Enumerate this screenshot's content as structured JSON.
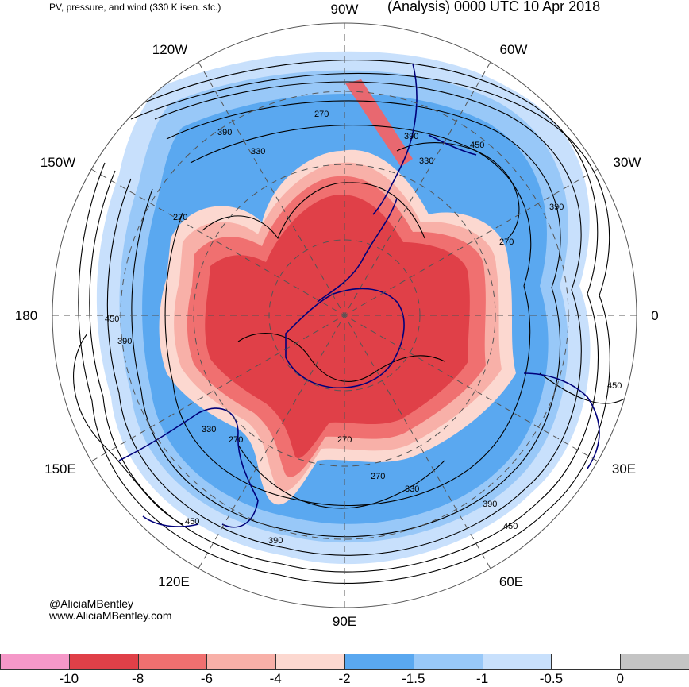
{
  "header": {
    "title_left": "PV, pressure, and wind (330 K isen. sfc.)",
    "title_right": "(Analysis) 0000 UTC 10 Apr 2018"
  },
  "credit": {
    "handle": "@AliciaMBentley",
    "website": "www.AliciaMBentley.com"
  },
  "map": {
    "longitude_labels": [
      "90W",
      "60W",
      "30W",
      "0",
      "30E",
      "60E",
      "90E",
      "120E",
      "150E",
      "180",
      "150W",
      "120W"
    ],
    "contour_labels": [
      "270",
      "330",
      "390",
      "450"
    ],
    "colors": {
      "pv_very_strong": "#e04048",
      "pv_strong": "#f07070",
      "pv_moderate": "#f8b0a8",
      "pv_weak": "#fcd8d0",
      "blue_dark": "#5aa8f0",
      "blue_mid": "#98c8f8",
      "blue_light": "#c8e0fc",
      "coast": "#00007a",
      "contour": "#000000"
    }
  },
  "colorbar": {
    "labels": [
      "-10",
      "-8",
      "-6",
      "-4",
      "-2",
      "-1.5",
      "-1",
      "-0.5",
      "0"
    ],
    "colors": [
      "#f598c8",
      "#e04048",
      "#f07070",
      "#f8b0a8",
      "#fcd8d0",
      "#5aa8f0",
      "#98c8f8",
      "#c8e0fc",
      "#ffffff",
      "#c4c4c4"
    ]
  }
}
